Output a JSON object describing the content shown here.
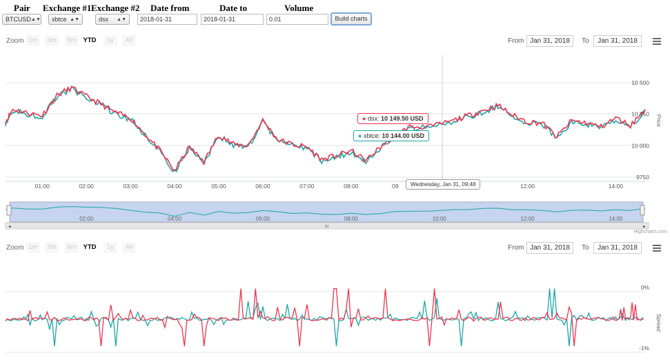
{
  "form": {
    "headers": {
      "pair": "Pair",
      "exchange1": "Exchange #1",
      "exchange2": "Exchange #2",
      "date_from": "Date from",
      "date_to": "Date to",
      "volume": "Volume"
    },
    "pair_value": "BTCUSD",
    "exchange1_value": "xbtce",
    "exchange2_value": "dsx",
    "date_from_value": "2018-01-31",
    "date_to_value": "2018-01-31",
    "volume_value": "0.01",
    "build_label": "Build charts"
  },
  "zoom": {
    "label": "Zoom",
    "buttons": [
      "1m",
      "3m",
      "6m",
      "YTD",
      "1y",
      "All"
    ],
    "active": "YTD",
    "from_label": "From",
    "to_label": "To",
    "from_value": "Jan 31, 2018",
    "to_value": "Jan 31, 2018"
  },
  "price_chart": {
    "y_title": "Price",
    "y_ticks": [
      "10 500",
      "10 250",
      "10 000",
      "9750"
    ],
    "x_ticks": [
      "01:00",
      "02:00",
      "03:00",
      "04:00",
      "05:00",
      "06:00",
      "07:00",
      "08:00",
      "09",
      "12:00",
      "14:00"
    ],
    "tooltip_dsx_name": "dsx",
    "tooltip_dsx_value": "10 149.50 USD",
    "tooltip_xbtce_name": "xbtce",
    "tooltip_xbtce_value": "10 144.00 USD",
    "crosshair_label": "Wednesday, Jan 31, 09:48"
  },
  "navigator": {
    "x_ticks": [
      "02:00",
      "04:00",
      "06:00",
      "08:00",
      "10:00",
      "12:00",
      "14:00"
    ]
  },
  "credit": "Highcharts.com",
  "spread_chart": {
    "y_title": "Spread",
    "y_ticks": [
      "0%",
      "-1%"
    ]
  },
  "colors": {
    "dsx": "#f0334d",
    "xbtce": "#1aa6a6",
    "navigator_fill": "#c6d4ef",
    "grid": "#e6e6e6"
  },
  "chart_data": [
    {
      "type": "line",
      "ylabel": "Price",
      "ylim": [
        9700,
        10600
      ],
      "x": [
        "00:10",
        "00:20",
        "00:40",
        "01:00",
        "01:20",
        "01:40",
        "02:00",
        "02:20",
        "02:40",
        "03:00",
        "03:20",
        "03:40",
        "04:00",
        "04:20",
        "04:40",
        "05:00",
        "05:20",
        "05:40",
        "06:00",
        "06:20",
        "06:40",
        "07:00",
        "07:20",
        "07:40",
        "08:00",
        "08:20",
        "08:40",
        "09:00",
        "09:20",
        "09:48",
        "10:20",
        "10:40",
        "11:00",
        "11:20",
        "11:40",
        "12:00",
        "12:20",
        "12:40",
        "13:00",
        "13:20",
        "13:40",
        "14:00",
        "14:20",
        "14:40"
      ],
      "series": [
        {
          "name": "dsx",
          "values": [
            10190,
            10290,
            10260,
            10240,
            10400,
            10460,
            10390,
            10330,
            10260,
            10220,
            10090,
            9960,
            9800,
            9990,
            9870,
            10090,
            10010,
            10000,
            10200,
            10050,
            10010,
            9990,
            9890,
            9920,
            9960,
            9880,
            9990,
            10080,
            10150,
            10150,
            10200,
            10240,
            10280,
            10320,
            10240,
            10190,
            10180,
            10070,
            10200,
            10180,
            10150,
            10220,
            10160,
            10290
          ]
        },
        {
          "name": "xbtce",
          "values": [
            10180,
            10280,
            10250,
            10230,
            10390,
            10450,
            10380,
            10320,
            10250,
            10210,
            10080,
            9950,
            9790,
            9980,
            9860,
            10080,
            10000,
            9990,
            10190,
            10040,
            10000,
            9980,
            9880,
            9910,
            9950,
            9870,
            9980,
            10070,
            10140,
            10144,
            10190,
            10230,
            10270,
            10310,
            10230,
            10180,
            10170,
            10060,
            10190,
            10170,
            10140,
            10210,
            10150,
            10280
          ]
        }
      ]
    },
    {
      "type": "line",
      "ylabel": "Spread",
      "ylim": [
        -1.2,
        0.2
      ],
      "x": [
        "00:10",
        "01:00",
        "02:00",
        "03:00",
        "04:00",
        "05:00",
        "06:00",
        "07:00",
        "08:00",
        "09:00",
        "10:00",
        "11:00",
        "12:00",
        "13:00",
        "14:00",
        "14:40"
      ],
      "series": [
        {
          "name": "dsx",
          "values": [
            -0.5,
            -0.3,
            -0.4,
            -0.2,
            -0.6,
            -0.35,
            -0.3,
            -0.35,
            -0.45,
            -0.25,
            -0.45,
            -0.4,
            -0.15,
            -0.35,
            -0.3,
            -0.35
          ]
        },
        {
          "name": "xbtce",
          "values": [
            -0.45,
            -0.5,
            -0.45,
            -0.5,
            -0.4,
            -0.45,
            -0.2,
            -0.45,
            -0.4,
            -0.45,
            -0.2,
            -0.3,
            -0.25,
            -0.45,
            -0.4,
            -0.3
          ]
        }
      ]
    }
  ]
}
